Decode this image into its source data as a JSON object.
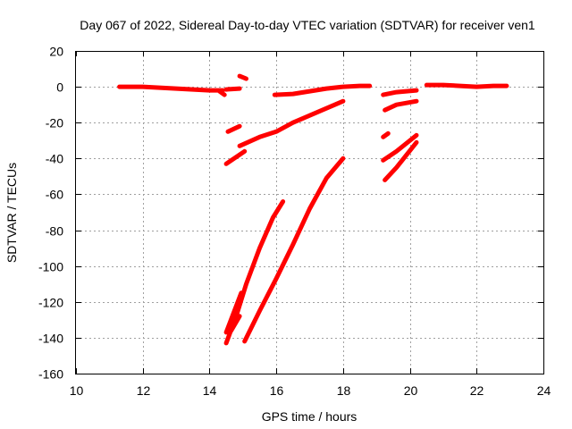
{
  "chart_data": {
    "type": "scatter",
    "title": "Day 067 of 2022, Sidereal Day-to-day VTEC variation (SDTVAR) for receiver ven1",
    "xlabel": "GPS time / hours",
    "ylabel": "SDTVAR / TECUs",
    "xlim": [
      10,
      24
    ],
    "ylim": [
      -160,
      20
    ],
    "xticks": [
      "10",
      "12",
      "14",
      "16",
      "18",
      "20",
      "22",
      "24"
    ],
    "yticks": [
      "20",
      "0",
      "-20",
      "-40",
      "-60",
      "-80",
      "-100",
      "-120",
      "-140",
      "-160"
    ],
    "grid": true,
    "marker_color": "#ff0000",
    "segments": [
      {
        "points": [
          [
            11.3,
            0
          ],
          [
            12,
            0
          ],
          [
            12.5,
            -0.5
          ],
          [
            13,
            -1
          ],
          [
            13.5,
            -1.5
          ],
          [
            14,
            -2
          ],
          [
            14.4,
            -2
          ]
        ]
      },
      {
        "points": [
          [
            14.3,
            -2.5
          ],
          [
            14.45,
            -4.5
          ]
        ]
      },
      {
        "points": [
          [
            14.5,
            -1.5
          ],
          [
            14.9,
            -1
          ]
        ]
      },
      {
        "points": [
          [
            14.9,
            6
          ],
          [
            15.1,
            4.5
          ]
        ]
      },
      {
        "points": [
          [
            15.95,
            -4.5
          ],
          [
            16.5,
            -4
          ],
          [
            17,
            -2.5
          ],
          [
            17.5,
            -1
          ],
          [
            18,
            0
          ],
          [
            18.5,
            0.5
          ],
          [
            18.8,
            0.5
          ]
        ]
      },
      {
        "points": [
          [
            14.55,
            -25
          ],
          [
            14.9,
            -22
          ]
        ]
      },
      {
        "points": [
          [
            14.5,
            -43
          ],
          [
            15.05,
            -36
          ]
        ]
      },
      {
        "points": [
          [
            14.9,
            -33
          ],
          [
            15.5,
            -28
          ],
          [
            16,
            -25
          ],
          [
            16.5,
            -20
          ],
          [
            17,
            -16
          ],
          [
            17.5,
            -12
          ],
          [
            18,
            -8
          ]
        ]
      },
      {
        "points": [
          [
            14.5,
            -143
          ],
          [
            14.8,
            -128
          ],
          [
            15.1,
            -110
          ],
          [
            15.5,
            -90
          ],
          [
            15.9,
            -73
          ],
          [
            16.2,
            -64
          ]
        ]
      },
      {
        "points": [
          [
            14.5,
            -137
          ],
          [
            14.95,
            -115
          ]
        ]
      },
      {
        "points": [
          [
            14.65,
            -136
          ],
          [
            14.9,
            -128
          ]
        ]
      },
      {
        "points": [
          [
            15.05,
            -142
          ],
          [
            15.5,
            -125
          ],
          [
            16,
            -107
          ],
          [
            16.5,
            -88
          ],
          [
            17,
            -68
          ],
          [
            17.5,
            -51
          ],
          [
            18,
            -40
          ]
        ]
      },
      {
        "points": [
          [
            19.2,
            -4.5
          ],
          [
            19.6,
            -3
          ],
          [
            20.2,
            -2
          ]
        ]
      },
      {
        "points": [
          [
            19.25,
            -13
          ],
          [
            19.6,
            -10
          ],
          [
            20.2,
            -8
          ]
        ]
      },
      {
        "points": [
          [
            19.2,
            -28
          ],
          [
            19.35,
            -26
          ]
        ]
      },
      {
        "points": [
          [
            19.2,
            -41
          ],
          [
            19.6,
            -36
          ],
          [
            20.2,
            -27
          ]
        ]
      },
      {
        "points": [
          [
            19.25,
            -52
          ],
          [
            19.6,
            -45
          ],
          [
            20.2,
            -31
          ]
        ]
      },
      {
        "points": [
          [
            20.5,
            1
          ],
          [
            21,
            1
          ],
          [
            21.5,
            0.5
          ],
          [
            22,
            0
          ],
          [
            22.5,
            0.5
          ],
          [
            22.9,
            0.5
          ]
        ]
      }
    ]
  }
}
